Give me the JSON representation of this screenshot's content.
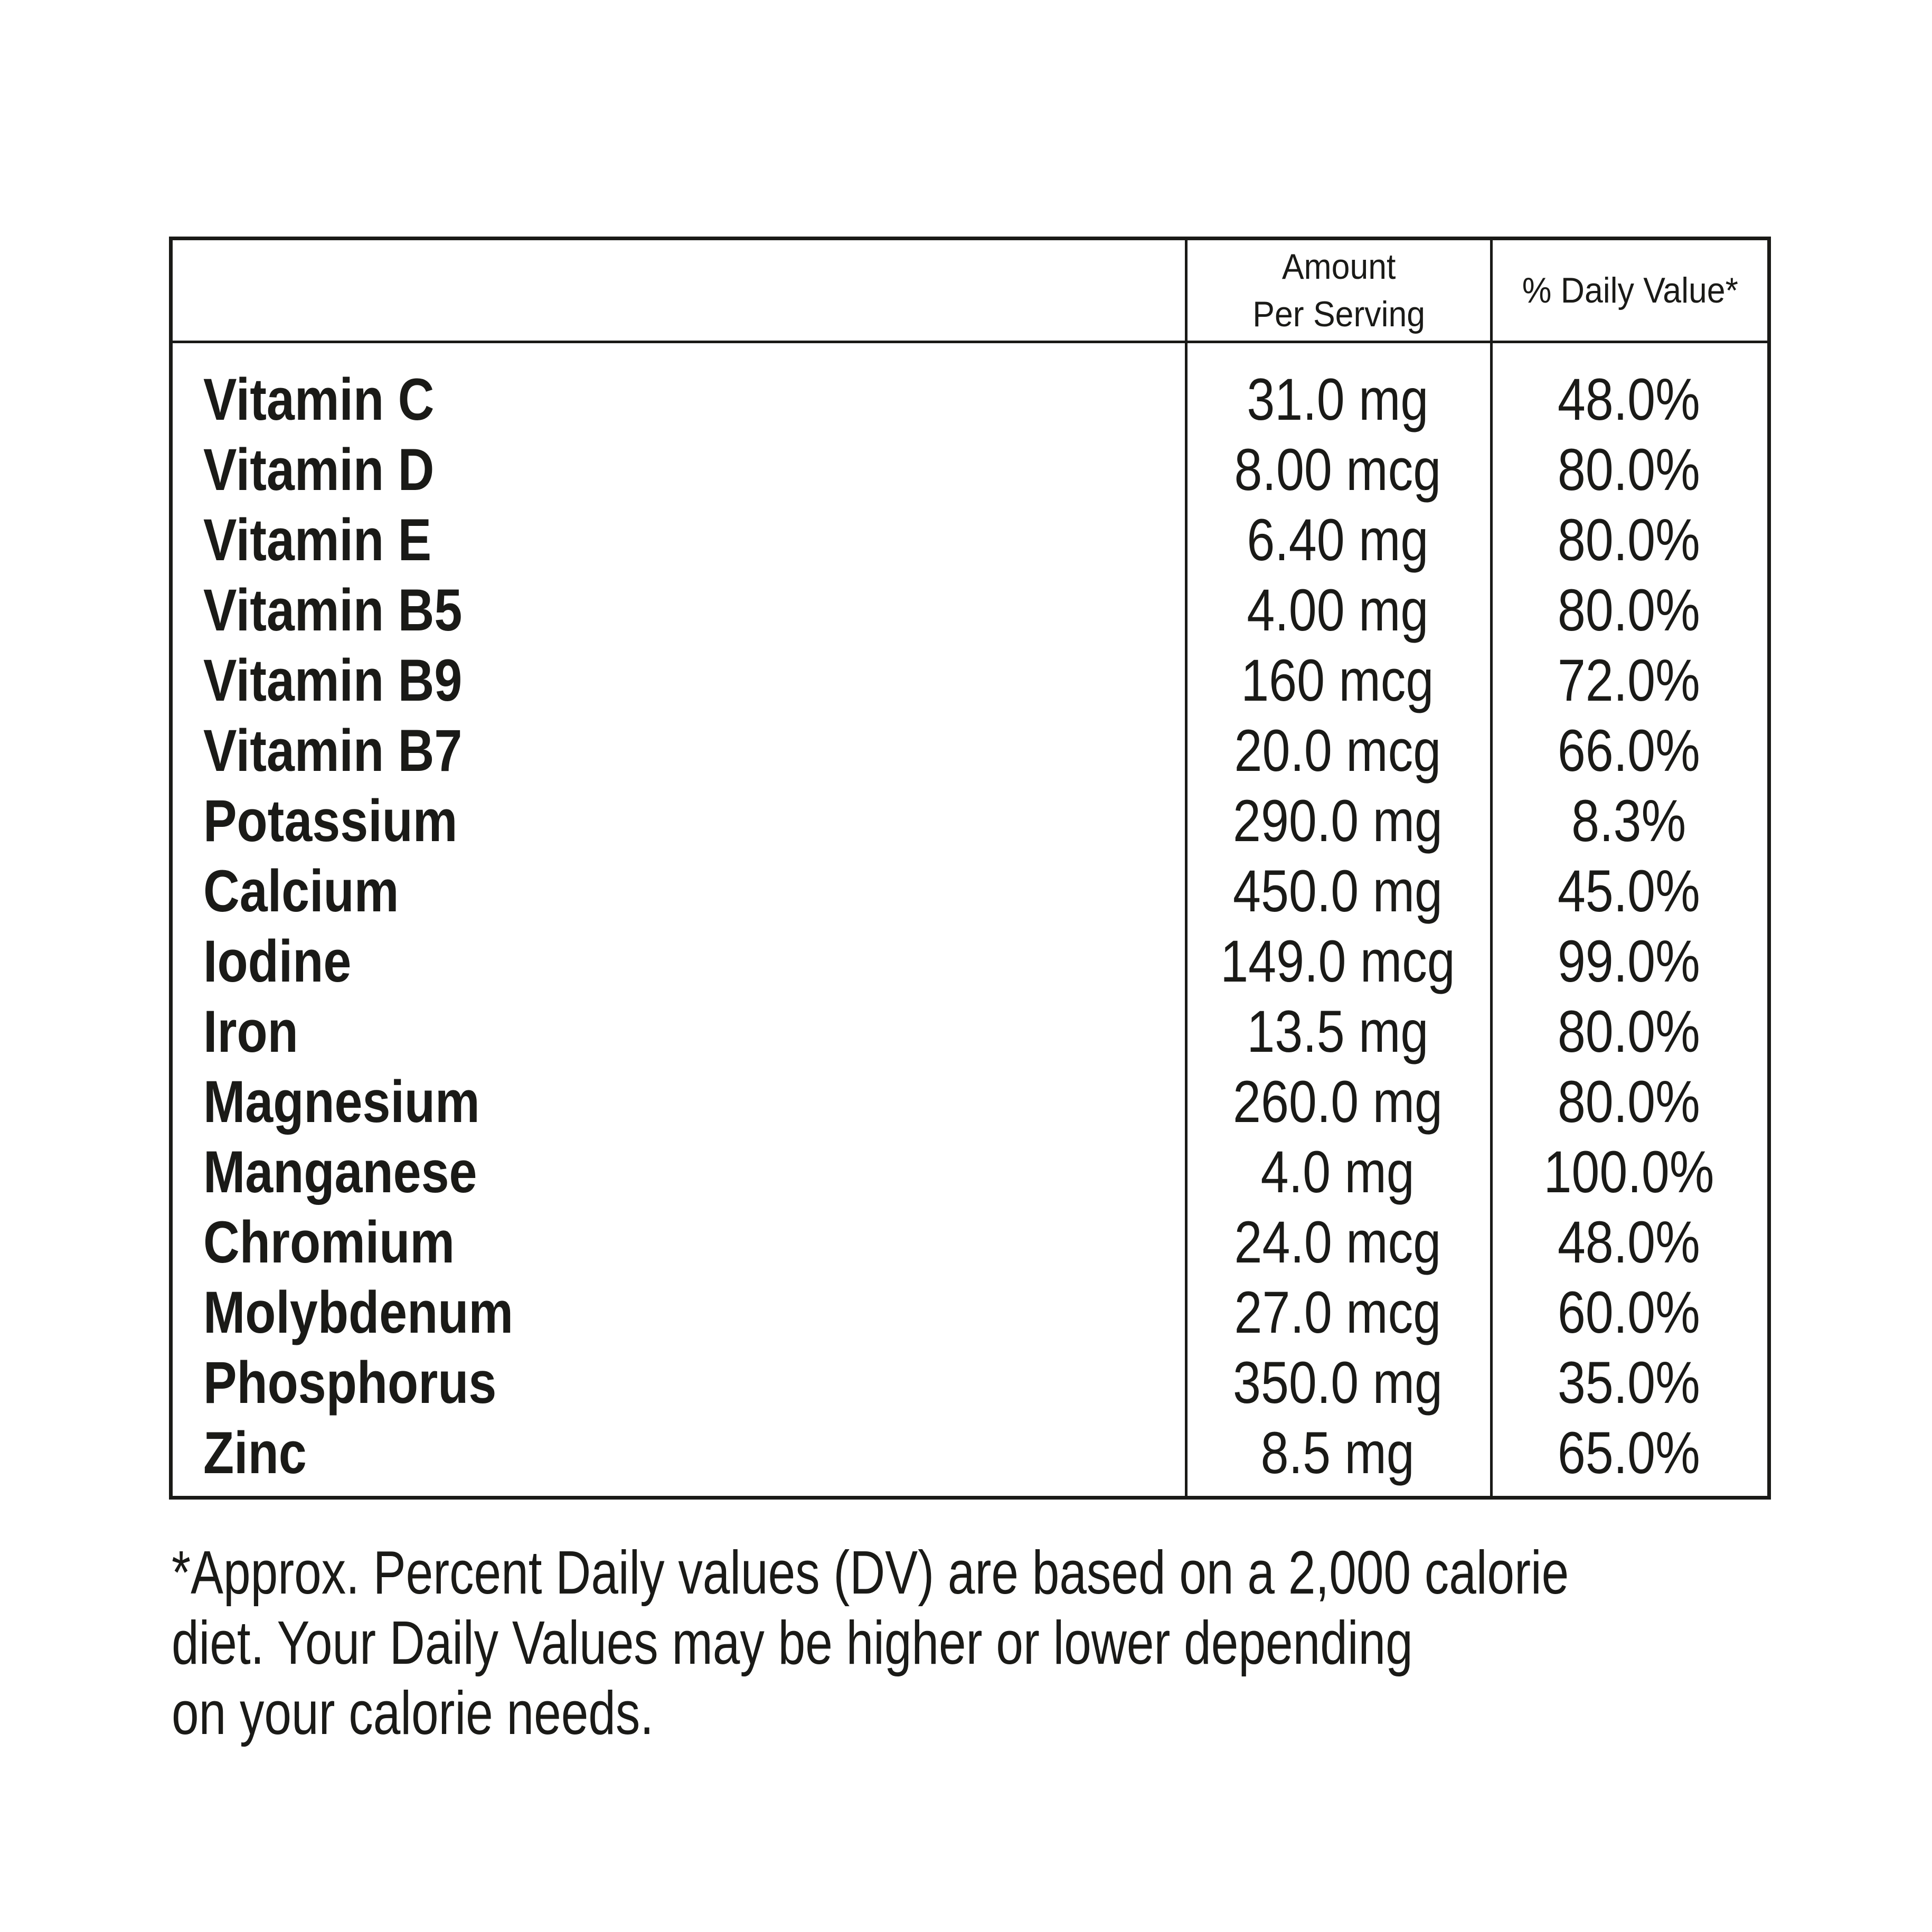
{
  "table": {
    "columns": {
      "amount_header": "Amount\nPer Serving",
      "dv_header": "% Daily Value*"
    },
    "rows": [
      {
        "nutrient": "Vitamin C",
        "amount": "31.0 mg",
        "daily_value": "48.0%"
      },
      {
        "nutrient": "Vitamin D",
        "amount": "8.00 mcg",
        "daily_value": "80.0%"
      },
      {
        "nutrient": "Vitamin E",
        "amount": "6.40 mg",
        "daily_value": "80.0%"
      },
      {
        "nutrient": "Vitamin B5",
        "amount": "4.00 mg",
        "daily_value": "80.0%"
      },
      {
        "nutrient": "Vitamin B9",
        "amount": "160 mcg",
        "daily_value": "72.0%"
      },
      {
        "nutrient": "Vitamin B7",
        "amount": "20.0 mcg",
        "daily_value": "66.0%"
      },
      {
        "nutrient": "Potassium",
        "amount": "290.0 mg",
        "daily_value": "8.3%"
      },
      {
        "nutrient": "Calcium",
        "amount": "450.0 mg",
        "daily_value": "45.0%"
      },
      {
        "nutrient": "Iodine",
        "amount": "149.0 mcg",
        "daily_value": "99.0%"
      },
      {
        "nutrient": "Iron",
        "amount": "13.5 mg",
        "daily_value": "80.0%"
      },
      {
        "nutrient": "Magnesium",
        "amount": "260.0 mg",
        "daily_value": "80.0%"
      },
      {
        "nutrient": "Manganese",
        "amount": "4.0 mg",
        "daily_value": "100.0%"
      },
      {
        "nutrient": "Chromium",
        "amount": "24.0 mcg",
        "daily_value": "48.0%"
      },
      {
        "nutrient": "Molybdenum",
        "amount": "27.0 mcg",
        "daily_value": "60.0%"
      },
      {
        "nutrient": "Phosphorus",
        "amount": "350.0 mg",
        "daily_value": "35.0%"
      },
      {
        "nutrient": "Zinc",
        "amount": "8.5 mg",
        "daily_value": "65.0%"
      }
    ]
  },
  "footnote": {
    "lines": [
      "*Approx. Percent Daily values (DV) are based on a 2,000 calorie",
      "diet. Your Daily Values may be higher or lower depending",
      "on your calorie needs."
    ]
  },
  "colors": {
    "text": "#1a1a17",
    "border": "#1a1a17",
    "background": "#ffffff"
  }
}
